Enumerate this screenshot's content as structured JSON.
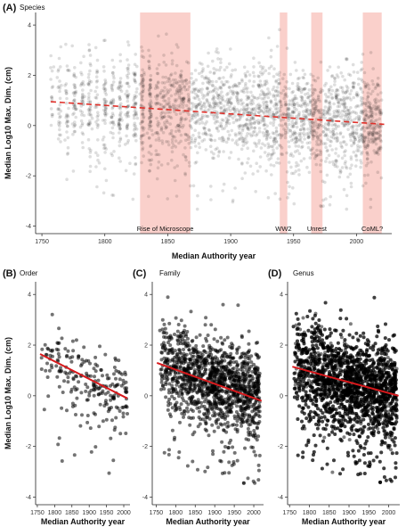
{
  "colors": {
    "points": "#000000",
    "band": "#f6a9a0",
    "trend_dashed": "#e0302a",
    "trend_solid": "#d7191c"
  },
  "chart_data": [
    {
      "panel": "(A)",
      "title": "Species",
      "type": "scatter",
      "xlabel": "Median Authority year",
      "ylabel": "Median Log10 Max. Dim. (cm)",
      "xlim": [
        1745,
        2028
      ],
      "ylim": [
        -4.3,
        4.5
      ],
      "xticks": [
        1750,
        1800,
        1850,
        1900,
        1950,
        2000
      ],
      "yticks": [
        -4,
        -2,
        0,
        2,
        4
      ],
      "shaded_periods": [
        {
          "label": "Rise of Microscope",
          "x0": 1828,
          "x1": 1868
        },
        {
          "label": "WW2",
          "x0": 1939,
          "x1": 1945
        },
        {
          "label": "Unrest",
          "x0": 1964,
          "x1": 1973
        },
        {
          "label": "CoML?",
          "x0": 2005,
          "x1": 2020
        }
      ],
      "trend": {
        "style": "dashed",
        "x": [
          1757,
          2022
        ],
        "y": [
          0.95,
          0.05
        ]
      },
      "point_density": [
        {
          "x": 1757,
          "y_center": 1.0,
          "spread": 1.3
        },
        {
          "x": 1800,
          "y_center": 0.8,
          "spread": 1.3
        },
        {
          "x": 1850,
          "y_center": 0.6,
          "spread": 1.4
        },
        {
          "x": 1900,
          "y_center": 0.6,
          "spread": 1.2
        },
        {
          "x": 1950,
          "y_center": 0.4,
          "spread": 1.2
        },
        {
          "x": 2000,
          "y_center": 0.3,
          "spread": 1.2
        },
        {
          "x": 2020,
          "y_center": 0.1,
          "spread": 0.9
        }
      ],
      "grid": false
    },
    {
      "panel": "(B)",
      "title": "Order",
      "type": "scatter",
      "xlabel": "Median Authority year",
      "ylabel": "Median Log10 Max. Dim. (cm)",
      "xlim": [
        1745,
        2018
      ],
      "ylim": [
        -4.3,
        4.5
      ],
      "xticks": [
        1750,
        1800,
        1850,
        1900,
        1950,
        2000
      ],
      "xtick_labels": [
        "1750",
        "1800",
        "1850",
        "1900",
        "1950",
        "2000"
      ],
      "yticks": [
        -4,
        -2,
        0,
        2,
        4
      ],
      "trend": {
        "style": "solid",
        "x": [
          1758,
          2010
        ],
        "y": [
          1.65,
          -0.1
        ]
      },
      "point_density": [
        {
          "x": 1760,
          "y_center": 1.6,
          "spread": 0.7
        },
        {
          "x": 1850,
          "y_center": 0.9,
          "spread": 0.9
        },
        {
          "x": 1950,
          "y_center": 0.4,
          "spread": 0.9
        },
        {
          "x": 2010,
          "y_center": 0.0,
          "spread": 0.8
        }
      ],
      "grid": false
    },
    {
      "panel": "(C)",
      "title": "Family",
      "type": "scatter",
      "xlabel": "Median Authority year",
      "ylabel": "",
      "xlim": [
        1740,
        2025
      ],
      "ylim": [
        -4.3,
        4.5
      ],
      "xticks": [
        1750,
        1800,
        1850,
        1900,
        1950,
        2000
      ],
      "xtick_labels": [
        "1750",
        "1800",
        "1850",
        "1900",
        "1950",
        "2000"
      ],
      "yticks": [
        -4,
        -2,
        0,
        2,
        4
      ],
      "trend": {
        "style": "solid",
        "x": [
          1752,
          2020
        ],
        "y": [
          1.3,
          -0.2
        ]
      },
      "point_density": [
        {
          "x": 1760,
          "y_center": 1.3,
          "spread": 1.0
        },
        {
          "x": 1850,
          "y_center": 0.8,
          "spread": 1.1
        },
        {
          "x": 1950,
          "y_center": 0.3,
          "spread": 1.1
        },
        {
          "x": 2015,
          "y_center": 0.0,
          "spread": 1.0
        }
      ],
      "grid": false
    },
    {
      "panel": "(D)",
      "title": "Genus",
      "type": "scatter",
      "xlabel": "Median Authority year",
      "ylabel": "",
      "xlim": [
        1745,
        2028
      ],
      "ylim": [
        -4.3,
        4.5
      ],
      "xticks": [
        1750,
        1800,
        1850,
        1900,
        1950,
        2000
      ],
      "xtick_labels": [
        "1750",
        "1800",
        "1850",
        "1900",
        "1950",
        "2000"
      ],
      "yticks": [
        -4,
        -2,
        0,
        2,
        4
      ],
      "trend": {
        "style": "solid",
        "x": [
          1757,
          2025
        ],
        "y": [
          1.15,
          0.0
        ]
      },
      "point_density": [
        {
          "x": 1760,
          "y_center": 1.2,
          "spread": 1.2
        },
        {
          "x": 1850,
          "y_center": 0.7,
          "spread": 1.3
        },
        {
          "x": 1950,
          "y_center": 0.3,
          "spread": 1.2
        },
        {
          "x": 2020,
          "y_center": 0.1,
          "spread": 1.1
        }
      ],
      "grid": false
    }
  ]
}
